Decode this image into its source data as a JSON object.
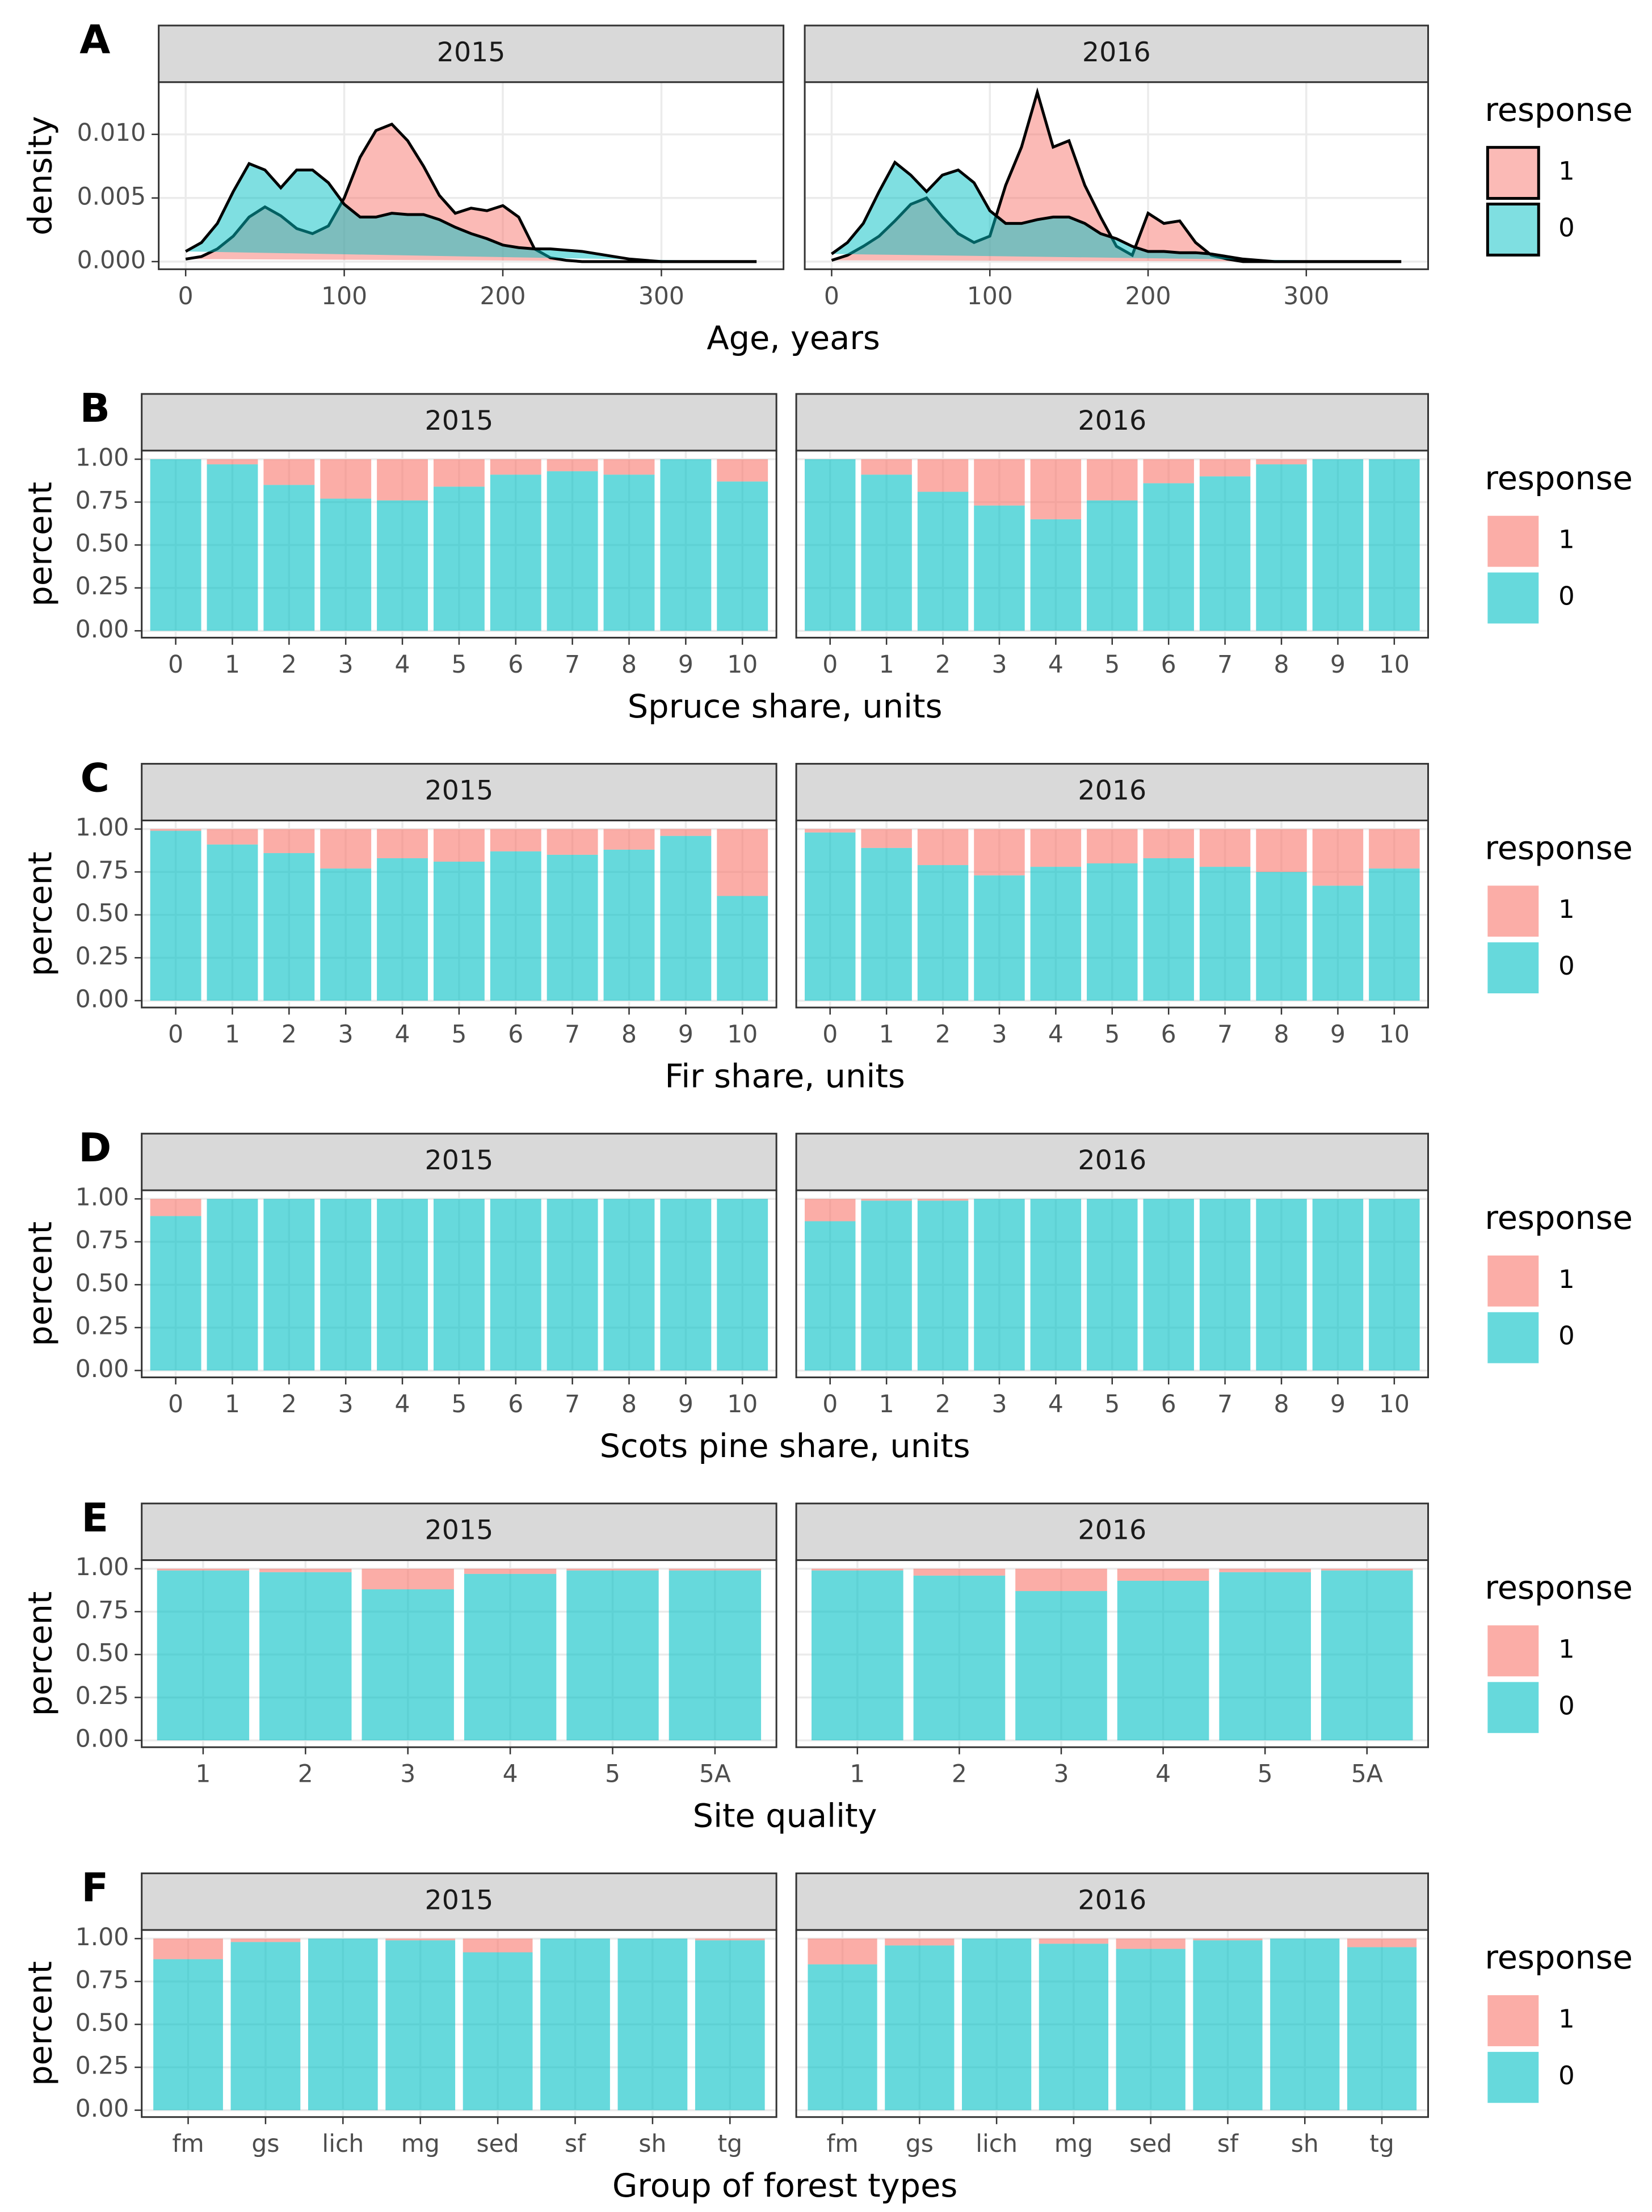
{
  "chart_data": [
    {
      "type": "density",
      "panel": "A",
      "facets": [
        "2015",
        "2016"
      ],
      "xlabel": "Age, years",
      "ylabel": "density",
      "legend_title": "response",
      "alpha": 0.5,
      "xlim": [
        -17,
        377
      ],
      "xticks": [
        0,
        100,
        200,
        300
      ],
      "ylim": [
        -0.0006,
        0.0141
      ],
      "yticks": [
        {
          "value": 0,
          "label": "0.000"
        },
        {
          "value": 0.005,
          "label": "0.005"
        },
        {
          "value": 0.01,
          "label": "0.010"
        }
      ],
      "x": [
        0,
        10,
        20,
        30,
        40,
        50,
        60,
        70,
        80,
        90,
        100,
        110,
        120,
        130,
        140,
        150,
        160,
        170,
        180,
        190,
        200,
        210,
        220,
        230,
        240,
        250,
        260,
        270,
        280,
        290,
        300,
        310,
        320,
        330,
        340,
        350,
        360
      ],
      "series": [
        {
          "name": "1",
          "color": "#F8766D",
          "values": [
            [
              0.0002,
              0.0004,
              0.001,
              0.002,
              0.0035,
              0.0043,
              0.0036,
              0.0026,
              0.0022,
              0.0028,
              0.005,
              0.0082,
              0.0103,
              0.0108,
              0.0095,
              0.0075,
              0.0052,
              0.0038,
              0.0042,
              0.004,
              0.0044,
              0.0035,
              0.001,
              0.0003,
              0.0001,
              0,
              0,
              0,
              0,
              0,
              0,
              0,
              0,
              0,
              0,
              0,
              0
            ],
            [
              0.0001,
              0.0005,
              0.0012,
              0.002,
              0.0032,
              0.0045,
              0.005,
              0.0035,
              0.0022,
              0.0015,
              0.002,
              0.006,
              0.009,
              0.0133,
              0.009,
              0.0095,
              0.006,
              0.0035,
              0.0012,
              0.0005,
              0.0038,
              0.003,
              0.0032,
              0.0015,
              0.0005,
              0.0002,
              0,
              0,
              0,
              0,
              0,
              0,
              0,
              0,
              0,
              0,
              0
            ]
          ]
        },
        {
          "name": "0",
          "color": "#00BFC4",
          "values": [
            [
              0.0008,
              0.0015,
              0.003,
              0.0055,
              0.0077,
              0.0072,
              0.0058,
              0.0072,
              0.0072,
              0.0062,
              0.0045,
              0.0035,
              0.0035,
              0.0038,
              0.0037,
              0.0037,
              0.0033,
              0.0027,
              0.0022,
              0.0018,
              0.0013,
              0.0011,
              0.001,
              0.001,
              0.0009,
              0.0008,
              0.0006,
              0.0004,
              0.0002,
              0.0001,
              0,
              0,
              0,
              0,
              0,
              0,
              0
            ],
            [
              0.0006,
              0.0015,
              0.003,
              0.0055,
              0.0078,
              0.0068,
              0.0055,
              0.0068,
              0.0072,
              0.0062,
              0.004,
              0.003,
              0.003,
              0.0033,
              0.0035,
              0.0035,
              0.003,
              0.0022,
              0.0018,
              0.0012,
              0.0008,
              0.0008,
              0.0007,
              0.0007,
              0.0006,
              0.0004,
              0.0002,
              0.0001,
              0,
              0,
              0,
              0,
              0,
              0,
              0,
              0,
              0
            ]
          ]
        }
      ]
    },
    {
      "type": "stacked_bar",
      "panel": "B",
      "facets": [
        "2015",
        "2016"
      ],
      "xlabel": "Spruce share, units",
      "ylabel": "percent",
      "legend_title": "response",
      "alpha": 0.6,
      "ylim": [
        -0.04,
        1.05
      ],
      "yticks": [
        {
          "value": 0,
          "label": "0.00"
        },
        {
          "value": 0.25,
          "label": "0.25"
        },
        {
          "value": 0.5,
          "label": "0.50"
        },
        {
          "value": 0.75,
          "label": "0.75"
        },
        {
          "value": 1,
          "label": "1.00"
        }
      ],
      "categories": [
        "0",
        "1",
        "2",
        "3",
        "4",
        "5",
        "6",
        "7",
        "8",
        "9",
        "10"
      ],
      "series": [
        {
          "name": "1",
          "color": "#F8766D",
          "values": [
            [
              0,
              0.03,
              0.15,
              0.23,
              0.24,
              0.16,
              0.09,
              0.07,
              0.09,
              0,
              0.13
            ],
            [
              0,
              0.09,
              0.19,
              0.27,
              0.35,
              0.24,
              0.14,
              0.1,
              0.03,
              0,
              0
            ]
          ]
        },
        {
          "name": "0",
          "color": "#00BFC4",
          "values": [
            [
              1,
              0.97,
              0.85,
              0.77,
              0.76,
              0.84,
              0.91,
              0.93,
              0.91,
              1,
              0.87
            ],
            [
              1,
              0.91,
              0.81,
              0.73,
              0.65,
              0.76,
              0.86,
              0.9,
              0.97,
              1,
              1
            ]
          ]
        }
      ]
    },
    {
      "type": "stacked_bar",
      "panel": "C",
      "facets": [
        "2015",
        "2016"
      ],
      "xlabel": "Fir share, units",
      "ylabel": "percent",
      "legend_title": "response",
      "alpha": 0.6,
      "ylim": [
        -0.04,
        1.05
      ],
      "yticks": [
        {
          "value": 0,
          "label": "0.00"
        },
        {
          "value": 0.25,
          "label": "0.25"
        },
        {
          "value": 0.5,
          "label": "0.50"
        },
        {
          "value": 0.75,
          "label": "0.75"
        },
        {
          "value": 1,
          "label": "1.00"
        }
      ],
      "categories": [
        "0",
        "1",
        "2",
        "3",
        "4",
        "5",
        "6",
        "7",
        "8",
        "9",
        "10"
      ],
      "series": [
        {
          "name": "1",
          "color": "#F8766D",
          "values": [
            [
              0.01,
              0.09,
              0.14,
              0.23,
              0.17,
              0.19,
              0.13,
              0.15,
              0.12,
              0.04,
              0.39
            ],
            [
              0.02,
              0.11,
              0.21,
              0.27,
              0.22,
              0.2,
              0.17,
              0.22,
              0.25,
              0.33,
              0.23
            ]
          ]
        },
        {
          "name": "0",
          "color": "#00BFC4",
          "values": [
            [
              0.99,
              0.91,
              0.86,
              0.77,
              0.83,
              0.81,
              0.87,
              0.85,
              0.88,
              0.96,
              0.61
            ],
            [
              0.98,
              0.89,
              0.79,
              0.73,
              0.78,
              0.8,
              0.83,
              0.78,
              0.75,
              0.67,
              0.77
            ]
          ]
        }
      ]
    },
    {
      "type": "stacked_bar",
      "panel": "D",
      "facets": [
        "2015",
        "2016"
      ],
      "xlabel": "Scots pine share, units",
      "ylabel": "percent",
      "legend_title": "response",
      "alpha": 0.6,
      "ylim": [
        -0.04,
        1.05
      ],
      "yticks": [
        {
          "value": 0,
          "label": "0.00"
        },
        {
          "value": 0.25,
          "label": "0.25"
        },
        {
          "value": 0.5,
          "label": "0.50"
        },
        {
          "value": 0.75,
          "label": "0.75"
        },
        {
          "value": 1,
          "label": "1.00"
        }
      ],
      "categories": [
        "0",
        "1",
        "2",
        "3",
        "4",
        "5",
        "6",
        "7",
        "8",
        "9",
        "10"
      ],
      "series": [
        {
          "name": "1",
          "color": "#F8766D",
          "values": [
            [
              0.1,
              0,
              0,
              0,
              0,
              0,
              0,
              0,
              0,
              0,
              0
            ],
            [
              0.13,
              0.01,
              0.01,
              0,
              0,
              0,
              0,
              0,
              0,
              0,
              0
            ]
          ]
        },
        {
          "name": "0",
          "color": "#00BFC4",
          "values": [
            [
              0.9,
              1,
              1,
              1,
              1,
              1,
              1,
              1,
              1,
              1,
              1
            ],
            [
              0.87,
              0.99,
              0.99,
              1,
              1,
              1,
              1,
              1,
              1,
              1,
              1
            ]
          ]
        }
      ]
    },
    {
      "type": "stacked_bar",
      "panel": "E",
      "facets": [
        "2015",
        "2016"
      ],
      "xlabel": "Site quality",
      "ylabel": "percent",
      "legend_title": "response",
      "alpha": 0.6,
      "ylim": [
        -0.04,
        1.05
      ],
      "yticks": [
        {
          "value": 0,
          "label": "0.00"
        },
        {
          "value": 0.25,
          "label": "0.25"
        },
        {
          "value": 0.5,
          "label": "0.50"
        },
        {
          "value": 0.75,
          "label": "0.75"
        },
        {
          "value": 1,
          "label": "1.00"
        }
      ],
      "categories": [
        "1",
        "2",
        "3",
        "4",
        "5",
        "5A"
      ],
      "series": [
        {
          "name": "1",
          "color": "#F8766D",
          "values": [
            [
              0.01,
              0.02,
              0.12,
              0.03,
              0.01,
              0.01
            ],
            [
              0.01,
              0.04,
              0.13,
              0.07,
              0.02,
              0.01
            ]
          ]
        },
        {
          "name": "0",
          "color": "#00BFC4",
          "values": [
            [
              0.99,
              0.98,
              0.88,
              0.97,
              0.99,
              0.99
            ],
            [
              0.99,
              0.96,
              0.87,
              0.93,
              0.98,
              0.99
            ]
          ]
        }
      ]
    },
    {
      "type": "stacked_bar",
      "panel": "F",
      "facets": [
        "2015",
        "2016"
      ],
      "xlabel": "Group of forest types",
      "ylabel": "percent",
      "legend_title": "response",
      "alpha": 0.6,
      "ylim": [
        -0.04,
        1.05
      ],
      "yticks": [
        {
          "value": 0,
          "label": "0.00"
        },
        {
          "value": 0.25,
          "label": "0.25"
        },
        {
          "value": 0.5,
          "label": "0.50"
        },
        {
          "value": 0.75,
          "label": "0.75"
        },
        {
          "value": 1,
          "label": "1.00"
        }
      ],
      "categories": [
        "fm",
        "gs",
        "lich",
        "mg",
        "sed",
        "sf",
        "sh",
        "tg"
      ],
      "series": [
        {
          "name": "1",
          "color": "#F8766D",
          "values": [
            [
              0.12,
              0.02,
              0,
              0.01,
              0.08,
              0,
              0,
              0.01
            ],
            [
              0.15,
              0.04,
              0,
              0.03,
              0.06,
              0.01,
              0,
              0.05
            ]
          ]
        },
        {
          "name": "0",
          "color": "#00BFC4",
          "values": [
            [
              0.88,
              0.98,
              1,
              0.99,
              0.92,
              1,
              1,
              0.99
            ],
            [
              0.85,
              0.96,
              1,
              0.97,
              0.94,
              0.99,
              1,
              0.95
            ]
          ]
        }
      ]
    }
  ]
}
